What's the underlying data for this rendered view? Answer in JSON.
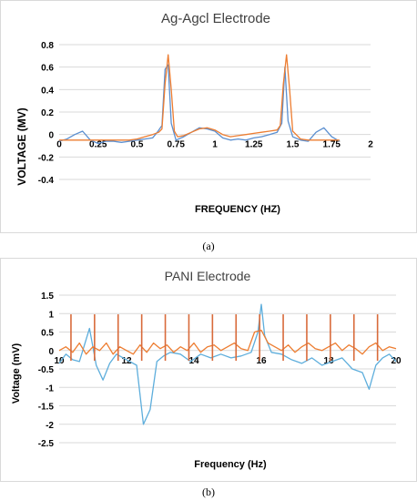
{
  "subcaptions": [
    "(a)",
    "(b)"
  ],
  "chart_data": [
    {
      "type": "line",
      "title": "Ag-Agcl Electrode",
      "xlabel": "FREQUENCY (HZ)",
      "ylabel": "VOLTAGE  (MV)",
      "xlim": [
        0,
        2
      ],
      "ylim": [
        -0.4,
        0.8
      ],
      "xticks": [
        0,
        0.25,
        0.5,
        0.75,
        1,
        1.25,
        1.5,
        1.75,
        2
      ],
      "xtick_labels": [
        "0",
        "0.25",
        "0.5",
        "0.75",
        "1",
        "1.25",
        "1.5",
        "1.75",
        "2"
      ],
      "yticks": [
        -0.4,
        -0.2,
        0,
        0.2,
        0.4,
        0.6,
        0.8
      ],
      "ytick_labels": [
        "-0.4",
        "-0.2",
        "0",
        "0.2",
        "0.4",
        "0.6",
        "0.8"
      ],
      "grid": true,
      "legend": "none",
      "series": [
        {
          "color": "#5b8fd0",
          "x": [
            0,
            0.05,
            0.1,
            0.15,
            0.2,
            0.25,
            0.3,
            0.35,
            0.4,
            0.45,
            0.5,
            0.55,
            0.6,
            0.63,
            0.66,
            0.68,
            0.7,
            0.72,
            0.75,
            0.8,
            0.85,
            0.9,
            0.95,
            1.0,
            1.05,
            1.1,
            1.15,
            1.2,
            1.25,
            1.3,
            1.35,
            1.4,
            1.43,
            1.45,
            1.47,
            1.5,
            1.55,
            1.6,
            1.65,
            1.7,
            1.75,
            1.8
          ],
          "y": [
            -0.06,
            -0.04,
            0.0,
            0.03,
            -0.05,
            -0.08,
            -0.06,
            -0.06,
            -0.07,
            -0.06,
            -0.05,
            -0.04,
            -0.03,
            0.02,
            0.08,
            0.58,
            0.62,
            0.1,
            -0.05,
            -0.02,
            0.02,
            0.06,
            0.05,
            0.03,
            -0.03,
            -0.05,
            -0.04,
            -0.05,
            -0.03,
            -0.02,
            0.0,
            0.02,
            0.1,
            0.6,
            0.12,
            -0.02,
            -0.05,
            -0.06,
            0.02,
            0.06,
            -0.02,
            -0.06
          ]
        },
        {
          "color": "#ed7d31",
          "x": [
            0,
            0.05,
            0.1,
            0.15,
            0.2,
            0.25,
            0.3,
            0.35,
            0.4,
            0.45,
            0.5,
            0.55,
            0.6,
            0.64,
            0.66,
            0.68,
            0.7,
            0.72,
            0.74,
            0.76,
            0.8,
            0.85,
            0.9,
            0.95,
            1.0,
            1.05,
            1.1,
            1.15,
            1.2,
            1.25,
            1.3,
            1.35,
            1.4,
            1.42,
            1.44,
            1.46,
            1.48,
            1.5,
            1.55,
            1.6,
            1.65,
            1.7,
            1.75,
            1.8
          ],
          "y": [
            -0.05,
            -0.05,
            -0.05,
            -0.05,
            -0.05,
            -0.05,
            -0.05,
            -0.05,
            -0.05,
            -0.05,
            -0.04,
            -0.02,
            0.0,
            0.02,
            0.05,
            0.45,
            0.71,
            0.4,
            0.03,
            -0.02,
            -0.01,
            0.02,
            0.05,
            0.06,
            0.04,
            0.0,
            -0.02,
            -0.01,
            0.0,
            0.01,
            0.02,
            0.03,
            0.04,
            0.08,
            0.45,
            0.71,
            0.4,
            0.03,
            -0.04,
            -0.05,
            -0.05,
            -0.05,
            -0.05,
            -0.05
          ]
        }
      ]
    },
    {
      "type": "line",
      "title": "PANI Electrode",
      "xlabel": "Frequency (Hz)",
      "ylabel": "Voltage (mV)",
      "xlim": [
        10,
        20
      ],
      "ylim": [
        -2.5,
        1.5
      ],
      "xticks": [
        10,
        12,
        14,
        16,
        18,
        20
      ],
      "xtick_labels": [
        "10",
        "12",
        "14",
        "16",
        "18",
        "20"
      ],
      "yticks": [
        -2.5,
        -2,
        -1.5,
        -1,
        -0.5,
        0,
        0.5,
        1,
        1.5
      ],
      "ytick_labels": [
        "-2.5",
        "-2",
        "-1.5",
        "-1",
        "-0.5",
        "0",
        "0.5",
        "1",
        "1.5"
      ],
      "grid": true,
      "legend": "none",
      "series": [
        {
          "color": "#5eaedc",
          "x": [
            10,
            10.2,
            10.4,
            10.6,
            10.9,
            11.1,
            11.3,
            11.5,
            11.7,
            11.9,
            12.1,
            12.3,
            12.5,
            12.7,
            12.9,
            13.1,
            13.3,
            13.6,
            13.9,
            14.2,
            14.5,
            14.8,
            15.1,
            15.4,
            15.7,
            15.9,
            16.0,
            16.1,
            16.3,
            16.6,
            16.9,
            17.2,
            17.5,
            17.8,
            18.1,
            18.4,
            18.7,
            19.0,
            19.2,
            19.4,
            19.6,
            19.8,
            20.0
          ],
          "y": [
            -0.35,
            -0.1,
            -0.25,
            -0.3,
            0.6,
            -0.4,
            -0.8,
            -0.35,
            -0.1,
            -0.2,
            -0.3,
            -0.4,
            -2.0,
            -1.6,
            -0.3,
            -0.15,
            -0.05,
            -0.1,
            -0.3,
            -0.1,
            -0.2,
            -0.1,
            -0.2,
            -0.15,
            -0.05,
            0.5,
            1.25,
            0.4,
            -0.05,
            -0.1,
            -0.25,
            -0.35,
            -0.2,
            -0.4,
            -0.3,
            -0.2,
            -0.5,
            -0.6,
            -1.05,
            -0.4,
            -0.2,
            -0.1,
            -0.3
          ]
        },
        {
          "color": "#ed7d31",
          "x": [
            10,
            10.2,
            10.4,
            10.6,
            10.8,
            11.0,
            11.2,
            11.4,
            11.6,
            11.8,
            12.0,
            12.2,
            12.4,
            12.6,
            12.8,
            13.0,
            13.2,
            13.4,
            13.6,
            13.8,
            14.0,
            14.2,
            14.4,
            14.6,
            14.8,
            15.0,
            15.2,
            15.4,
            15.6,
            15.8,
            16.0,
            16.2,
            16.4,
            16.6,
            16.8,
            17.0,
            17.2,
            17.4,
            17.6,
            17.8,
            18.0,
            18.2,
            18.4,
            18.6,
            18.8,
            19.0,
            19.2,
            19.4,
            19.6,
            19.8,
            20.0
          ],
          "y": [
            0.0,
            0.1,
            -0.05,
            0.2,
            -0.1,
            0.1,
            0.0,
            0.2,
            -0.1,
            0.1,
            0.0,
            -0.1,
            0.15,
            -0.05,
            0.2,
            0.05,
            0.15,
            -0.05,
            0.1,
            0.0,
            0.2,
            -0.05,
            0.1,
            0.15,
            0.0,
            0.1,
            0.2,
            0.05,
            0.0,
            0.5,
            0.55,
            0.2,
            0.1,
            0.0,
            0.15,
            -0.05,
            0.1,
            0.2,
            0.05,
            0.0,
            0.1,
            0.2,
            0.0,
            0.15,
            0.05,
            -0.1,
            0.1,
            0.2,
            0.0,
            0.1,
            0.05
          ]
        }
      ],
      "spike_series": {
        "color": "#d86a3a",
        "x": [
          10.35,
          11.05,
          11.75,
          12.45,
          13.15,
          13.85,
          14.55,
          15.25,
          15.95,
          16.65,
          17.35,
          18.05,
          18.75,
          19.45
        ],
        "top": 0.98,
        "bottom": -0.28
      }
    }
  ]
}
